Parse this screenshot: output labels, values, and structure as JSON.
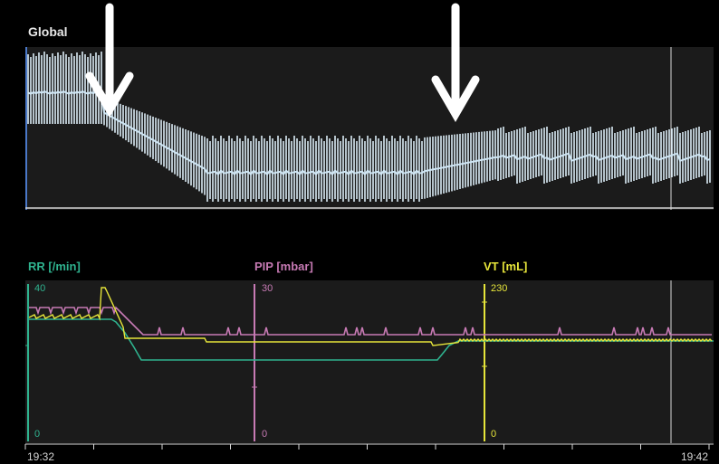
{
  "global_panel": {
    "title": "Global"
  },
  "trend_panel": {
    "params": [
      {
        "label": "RR [/min]",
        "color": "#2fb38f",
        "scale_max": "40",
        "scale_min": "0"
      },
      {
        "label": "PIP [mbar]",
        "color": "#c77ab4",
        "scale_max": "30",
        "scale_min": "0"
      },
      {
        "label": "VT [mL]",
        "color": "#e6e53a",
        "scale_max": "230",
        "scale_min": "0"
      }
    ]
  },
  "time_axis": {
    "start": "19:32",
    "end": "19:42"
  },
  "annotations": {
    "arrow_count": 2,
    "arrow_color": "#ffffff"
  }
}
